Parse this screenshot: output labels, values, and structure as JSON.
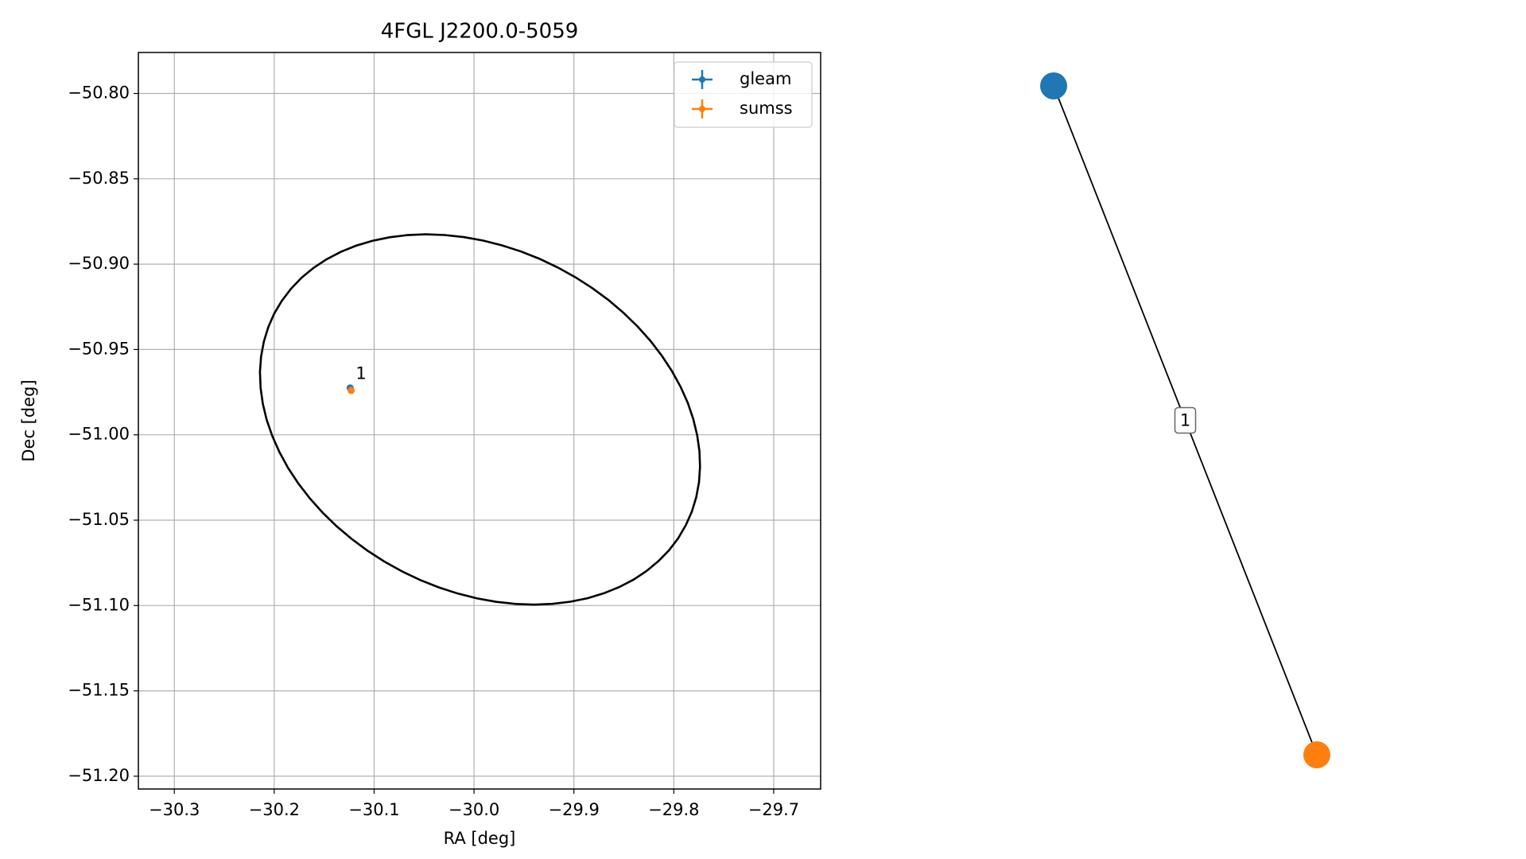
{
  "chart_data": [
    {
      "type": "scatter",
      "title": "4FGL J2200.0-5059",
      "xlabel": "RA [deg]",
      "ylabel": "Dec [deg]",
      "xlim": [
        -30.336,
        -29.653
      ],
      "ylim": [
        -51.2075,
        -50.776
      ],
      "xticks": [
        {
          "value": -30.3,
          "label": "−30.3"
        },
        {
          "value": -30.2,
          "label": "−30.2"
        },
        {
          "value": -30.1,
          "label": "−30.1"
        },
        {
          "value": -30.0,
          "label": "−30.0"
        },
        {
          "value": -29.9,
          "label": "−29.9"
        },
        {
          "value": -29.8,
          "label": "−29.8"
        },
        {
          "value": -29.7,
          "label": "−29.7"
        }
      ],
      "yticks": [
        {
          "value": -50.8,
          "label": "−50.80"
        },
        {
          "value": -50.85,
          "label": "−50.85"
        },
        {
          "value": -50.9,
          "label": "−50.90"
        },
        {
          "value": -50.95,
          "label": "−50.95"
        },
        {
          "value": -51.0,
          "label": "−51.00"
        },
        {
          "value": -51.05,
          "label": "−51.05"
        },
        {
          "value": -51.1,
          "label": "−51.10"
        },
        {
          "value": -51.15,
          "label": "−51.15"
        },
        {
          "value": -51.2,
          "label": "−51.20"
        }
      ],
      "grid": true,
      "legend": "upper right",
      "series": [
        {
          "name": "gleam",
          "color": "#1f77b4",
          "x": [
            -30.124
          ],
          "y": [
            -50.9725
          ]
        },
        {
          "name": "sumss",
          "color": "#ff7f0e",
          "x": [
            -30.123
          ],
          "y": [
            -50.974
          ]
        }
      ],
      "annotation": "1",
      "ellipse": {
        "center": [
          -29.994,
          -50.991
        ],
        "axis1": [
          0.206,
          -0.062
        ],
        "axis2": [
          -0.078,
          -0.089
        ],
        "color": "#000000"
      }
    },
    {
      "type": "graph",
      "nodes": [
        {
          "color": "#1f77b4"
        },
        {
          "color": "#ff7f0e"
        }
      ],
      "edges": [
        {
          "source": 0,
          "target": 1,
          "label": "1"
        }
      ]
    }
  ]
}
